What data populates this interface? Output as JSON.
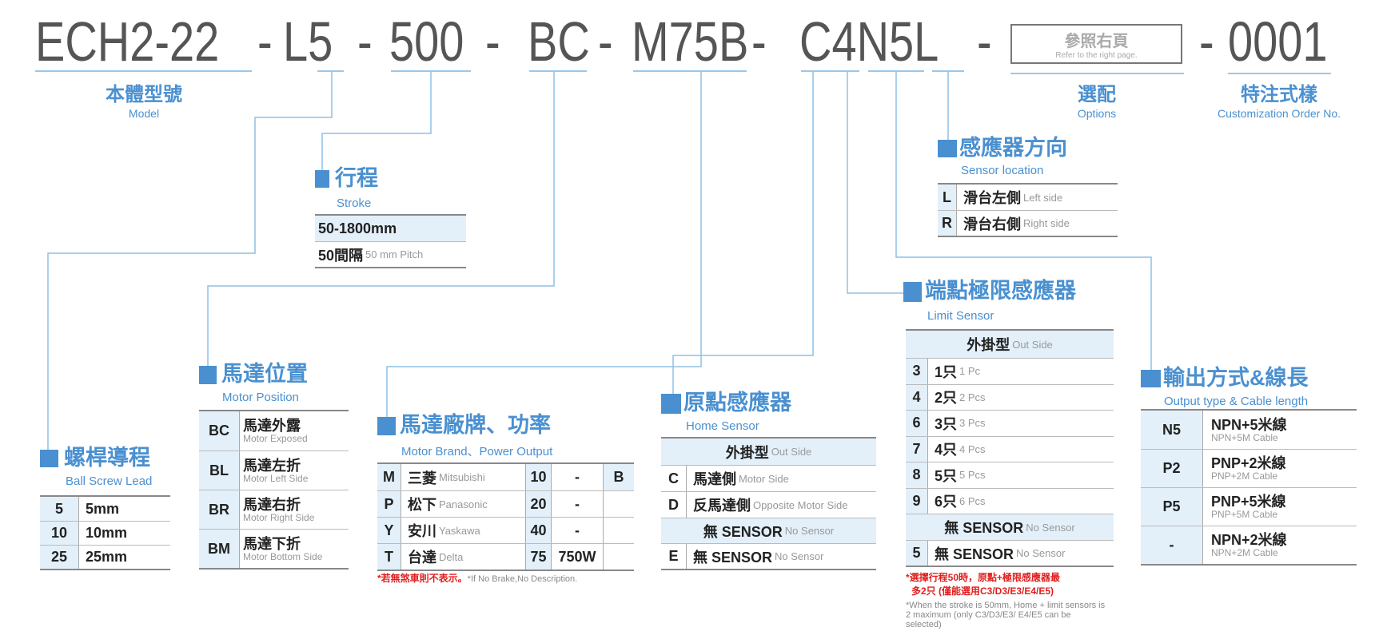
{
  "code": {
    "segments": [
      "ECH2-22",
      "-",
      "L5",
      "-",
      "500",
      "-",
      "BC",
      "-",
      "M75B",
      "-",
      "C4N5L",
      "-",
      "-",
      "0001"
    ],
    "ref_box": {
      "zh": "參照右頁",
      "en": "Refer to the right page."
    }
  },
  "labels": {
    "model": {
      "zh": "本體型號",
      "en": "Model"
    },
    "options": {
      "zh": "選配",
      "en": "Options"
    },
    "custom": {
      "zh": "特注式樣",
      "en": "Customization Order No."
    }
  },
  "colors": {
    "accent": "#4a90d0",
    "shade": "#e3f0fa",
    "note_red": "#e02020"
  },
  "sections": {
    "ball_screw": {
      "title": "螺桿導程",
      "subtitle": "Ball Screw Lead",
      "rows": [
        {
          "code": "5",
          "value": "5mm"
        },
        {
          "code": "10",
          "value": "10mm"
        },
        {
          "code": "25",
          "value": "25mm"
        }
      ]
    },
    "stroke": {
      "title": "行程",
      "subtitle": "Stroke",
      "range": "50-1800mm",
      "pitch_zh": "50間隔",
      "pitch_en": "50 mm Pitch"
    },
    "motor_position": {
      "title": "馬達位置",
      "subtitle": "Motor Position",
      "rows": [
        {
          "code": "BC",
          "zh": "馬達外露",
          "en": "Motor Exposed"
        },
        {
          "code": "BL",
          "zh": "馬達左折",
          "en": "Motor Left Side"
        },
        {
          "code": "BR",
          "zh": "馬達右折",
          "en": "Motor Right Side"
        },
        {
          "code": "BM",
          "zh": "馬達下折",
          "en": "Motor Bottom Side"
        }
      ]
    },
    "motor_brand": {
      "title": "馬達廠牌、功率",
      "subtitle": "Motor Brand、Power Output",
      "rows": [
        {
          "code": "M",
          "zh": "三菱",
          "en": "Mitsubishi",
          "power": "10",
          "watt": "-",
          "brake": "B"
        },
        {
          "code": "P",
          "zh": "松下",
          "en": "Panasonic",
          "power": "20",
          "watt": "-",
          "brake": ""
        },
        {
          "code": "Y",
          "zh": "安川",
          "en": "Yaskawa",
          "power": "40",
          "watt": "-",
          "brake": ""
        },
        {
          "code": "T",
          "zh": "台達",
          "en": "Delta",
          "power": "75",
          "watt": "750W",
          "brake": ""
        }
      ],
      "note_zh": "*若無煞車則不表示。",
      "note_en": "*If No Brake,No Description."
    },
    "home_sensor": {
      "title": "原點感應器",
      "subtitle": "Home Sensor",
      "header_zh": "外掛型",
      "header_en": "Out Side",
      "rows": [
        {
          "code": "C",
          "zh": "馬達側",
          "en": "Motor Side"
        },
        {
          "code": "D",
          "zh": "反馬達側",
          "en": "Opposite Motor Side"
        }
      ],
      "none_header_zh": "無 SENSOR",
      "none_header_en": "No Sensor",
      "none_row": {
        "code": "E",
        "zh": "無 SENSOR",
        "en": "No Sensor"
      }
    },
    "limit_sensor": {
      "title": "端點極限感應器",
      "subtitle": "Limit Sensor",
      "header_zh": "外掛型",
      "header_en": "Out Side",
      "rows": [
        {
          "code": "3",
          "zh": "1只",
          "en": "1 Pc"
        },
        {
          "code": "4",
          "zh": "2只",
          "en": "2 Pcs"
        },
        {
          "code": "6",
          "zh": "3只",
          "en": "3 Pcs"
        },
        {
          "code": "7",
          "zh": "4只",
          "en": "4 Pcs"
        },
        {
          "code": "8",
          "zh": "5只",
          "en": "5 Pcs"
        },
        {
          "code": "9",
          "zh": "6只",
          "en": "6 Pcs"
        }
      ],
      "none_header_zh": "無 SENSOR",
      "none_header_en": "No Sensor",
      "none_row": {
        "code": "5",
        "zh": "無 SENSOR",
        "en": "No Sensor"
      },
      "note_red_1": "*選擇行程50時，原點+極限感應器最",
      "note_red_2": "多2只 (僅能選用C3/D3/E3/E4/E5)",
      "note_en": "*When the stroke is 50mm, Home + limit sensors is 2 maximum (only C3/D3/E3/ E4/E5 can be selected)"
    },
    "sensor_location": {
      "title": "感應器方向",
      "subtitle": "Sensor location",
      "rows": [
        {
          "code": "L",
          "zh": "滑台左側",
          "en": "Left side"
        },
        {
          "code": "R",
          "zh": "滑台右側",
          "en": "Right side"
        }
      ]
    },
    "output": {
      "title": "輸出方式&線長",
      "subtitle": "Output type & Cable length",
      "rows": [
        {
          "code": "N5",
          "zh": "NPN+5米線",
          "en": "NPN+5M Cable"
        },
        {
          "code": "P2",
          "zh": "PNP+2米線",
          "en": "PNP+2M Cable"
        },
        {
          "code": "P5",
          "zh": "PNP+5米線",
          "en": "PNP+5M Cable"
        },
        {
          "code": "-",
          "zh": "NPN+2米線",
          "en": "NPN+2M Cable"
        }
      ]
    }
  }
}
